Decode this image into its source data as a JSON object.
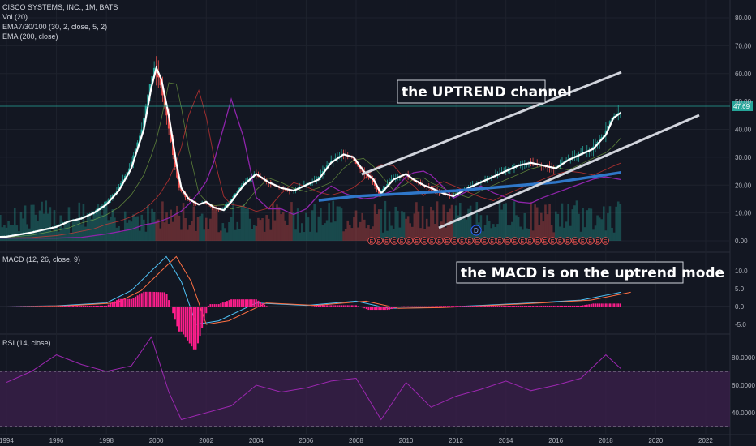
{
  "header": {
    "title": "CISCO SYSTEMS, INC., 1M, BATS",
    "vol": "Vol (20)",
    "ema_ribbon": "EMA7/30/100 (30, 2, close, 5, 2)",
    "ema200": "EMA (200, close)"
  },
  "price_tag": "47.69",
  "annotations": {
    "channel": "the UPTREND channel",
    "macd": "the MACD is on the uptrend mode"
  },
  "dividend_marker": "D",
  "earnings_marker": "E",
  "colors": {
    "background": "#131722",
    "up": "#26a69a",
    "down": "#ef5350",
    "price_line": "#ffffff",
    "ema_blue": "#2f77c9",
    "ema_purple": "#8e24aa",
    "macd_hist": "#ff1e8c",
    "rsi_line": "#9c27b0",
    "rsi_band": "#3a1f4a"
  },
  "chart_data": [
    {
      "type": "line",
      "name": "price",
      "x": [
        1993.0,
        1994.0,
        1995.0,
        1996.0,
        1996.5,
        1997.0,
        1997.5,
        1998.0,
        1998.5,
        1999.0,
        1999.5,
        1999.8,
        2000.0,
        2000.2,
        2000.5,
        2000.8,
        2001.0,
        2001.3,
        2001.7,
        2002.0,
        2002.3,
        2002.7,
        2003.0,
        2003.5,
        2004.0,
        2004.5,
        2005.0,
        2005.5,
        2006.0,
        2006.5,
        2007.0,
        2007.5,
        2007.9,
        2008.3,
        2008.7,
        2009.0,
        2009.5,
        2010.0,
        2010.3,
        2010.7,
        2011.0,
        2011.5,
        2011.9,
        2012.5,
        2013.0,
        2013.5,
        2014.0,
        2014.5,
        2015.0,
        2015.5,
        2016.0,
        2016.5,
        2017.0,
        2017.5,
        2018.0,
        2018.3,
        2018.6
      ],
      "y": [
        1.2,
        1.5,
        3,
        5,
        7,
        8,
        10,
        13,
        18,
        26,
        40,
        55,
        62,
        58,
        45,
        28,
        19,
        15,
        13,
        14,
        12,
        11,
        14,
        20,
        24,
        21,
        19,
        18,
        20,
        22,
        28,
        31,
        30,
        25,
        22,
        17,
        22,
        24,
        22,
        20,
        19,
        17,
        16,
        19,
        21,
        23,
        25,
        27,
        28,
        27,
        26,
        29,
        31,
        33,
        38,
        44,
        46
      ],
      "ylim": [
        0,
        80
      ],
      "xlim": [
        1993.0,
        2022.5
      ]
    },
    {
      "type": "line",
      "name": "EMA (200, close)",
      "x": [
        2006.5,
        2008,
        2010,
        2012,
        2014,
        2016,
        2018.6
      ],
      "y": [
        14.5,
        16,
        17,
        18,
        19.5,
        21,
        24.5
      ]
    },
    {
      "type": "line",
      "name": "MACD (12, 26, close, 9)",
      "x": [
        1994,
        1996,
        1998,
        1999,
        1999.8,
        2000.4,
        2001.0,
        2001.6,
        2002.5,
        2004,
        2006,
        2008,
        2009.3,
        2011,
        2013,
        2015,
        2017,
        2018.6
      ],
      "y": [
        0,
        0.2,
        1.0,
        4.5,
        10,
        14,
        7,
        -5,
        -4,
        1,
        0.3,
        1.5,
        -0.5,
        -0.3,
        0.3,
        1.0,
        1.8,
        4.0
      ],
      "ylim": [
        -7,
        14
      ]
    },
    {
      "type": "line",
      "name": "RSI (14, close)",
      "x": [
        1994,
        1995,
        1996,
        1997,
        1998,
        1999,
        1999.8,
        2000.5,
        2001,
        2002,
        2003,
        2004,
        2005,
        2006,
        2007,
        2008,
        2009,
        2010,
        2011,
        2012,
        2013,
        2014,
        2015,
        2016,
        2017,
        2018,
        2018.6
      ],
      "y": [
        62,
        70,
        82,
        75,
        70,
        74,
        95,
        55,
        35,
        40,
        45,
        60,
        55,
        58,
        63,
        65,
        35,
        62,
        44,
        52,
        57,
        63,
        56,
        60,
        65,
        82,
        72
      ],
      "ylim": [
        30,
        100
      ]
    }
  ],
  "axes": {
    "price_ticks": [
      "80.00",
      "70.00",
      "60.00",
      "50.00",
      "40.00",
      "30.00",
      "20.00",
      "10.00",
      "0.00"
    ],
    "macd_ticks": [
      "10.0",
      "5.0",
      "0.0",
      "-5.0"
    ],
    "rsi_ticks": [
      "80.0000",
      "60.0000",
      "40.0000"
    ],
    "x_ticks": [
      "1994",
      "1996",
      "1998",
      "2000",
      "2002",
      "2004",
      "2006",
      "2008",
      "2010",
      "2012",
      "2014",
      "2016",
      "2018",
      "2020",
      "2022"
    ]
  },
  "panes": {
    "macd_title": "MACD (12, 26, close, 9)",
    "rsi_title": "RSI (14, close)"
  }
}
